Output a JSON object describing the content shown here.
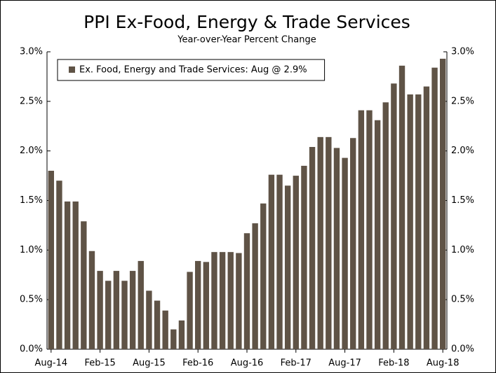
{
  "chart_data": {
    "type": "bar",
    "title": "PPI Ex-Food, Energy & Trade Services",
    "subtitle": "Year-over-Year Percent Change",
    "categories": [
      "Aug-14",
      null,
      null,
      null,
      null,
      null,
      "Feb-15",
      null,
      null,
      null,
      null,
      null,
      "Aug-15",
      null,
      null,
      null,
      null,
      null,
      "Feb-16",
      null,
      null,
      null,
      null,
      null,
      "Aug-16",
      null,
      null,
      null,
      null,
      null,
      "Feb-17",
      null,
      null,
      null,
      null,
      null,
      "Aug-17",
      null,
      null,
      null,
      null,
      null,
      "Feb-18",
      null,
      null,
      null,
      null,
      null,
      "Aug-18"
    ],
    "series": [
      {
        "name": "Ex. Food, Energy and Trade Services: Aug @ 2.9%",
        "color": "#5f5346",
        "values": [
          1.8,
          1.7,
          1.49,
          1.49,
          1.29,
          0.99,
          0.79,
          0.69,
          0.79,
          0.69,
          0.79,
          0.89,
          0.59,
          0.49,
          0.39,
          0.2,
          0.29,
          0.78,
          0.89,
          0.88,
          0.98,
          0.98,
          0.98,
          0.97,
          1.17,
          1.27,
          1.47,
          1.76,
          1.76,
          1.65,
          1.75,
          1.85,
          2.04,
          2.14,
          2.14,
          2.03,
          1.93,
          2.13,
          2.41,
          2.41,
          2.31,
          2.49,
          2.68,
          2.86,
          2.57,
          2.57,
          2.65,
          2.84,
          2.93
        ]
      }
    ],
    "ylim": [
      0,
      3
    ],
    "yticks": [
      {
        "value": 0,
        "label": "0.0%"
      },
      {
        "value": 0.5,
        "label": "0.5%"
      },
      {
        "value": 1,
        "label": "1.0%"
      },
      {
        "value": 1.5,
        "label": "1.5%"
      },
      {
        "value": 2,
        "label": "2.0%"
      },
      {
        "value": 2.5,
        "label": "2.5%"
      },
      {
        "value": 3,
        "label": "3.0%"
      }
    ],
    "y2lim": [
      0,
      3
    ],
    "y2ticks": [
      {
        "value": 0,
        "label": "0.0%"
      },
      {
        "value": 0.5,
        "label": "0.5%"
      },
      {
        "value": 1,
        "label": "1.0%"
      },
      {
        "value": 1.5,
        "label": "1.5%"
      },
      {
        "value": 2,
        "label": "2.0%"
      },
      {
        "value": 2.5,
        "label": "2.5%"
      },
      {
        "value": 3,
        "label": "3.0%"
      }
    ],
    "grid": false,
    "legend": "top-left"
  }
}
